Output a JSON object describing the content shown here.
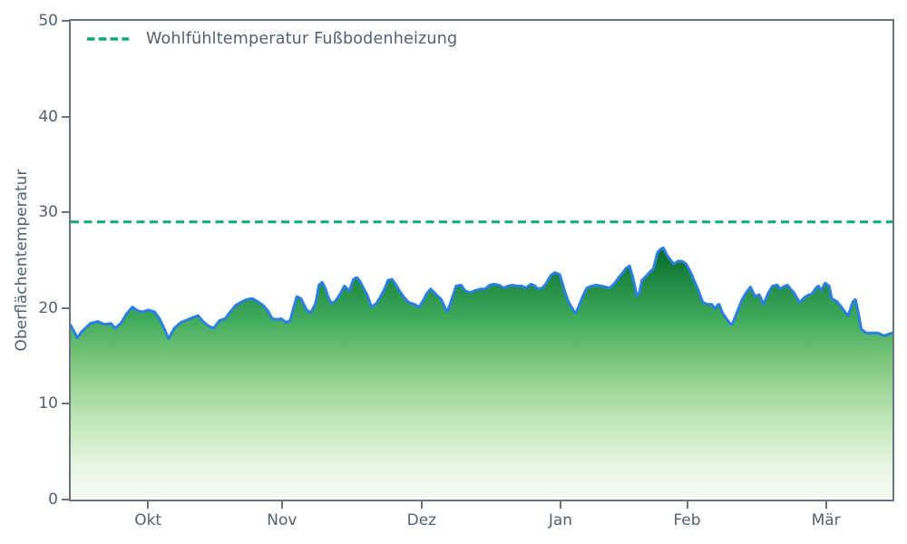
{
  "figure": {
    "background": "#ffffff",
    "text_color": "#546070",
    "spine_color": "#6b7380"
  },
  "legend": {
    "label": "Wohlfühltemperatur Fußbodenheizung",
    "line_color": "#0fa87a",
    "line_style": "dashed"
  },
  "chart_data": {
    "type": "area",
    "title": "",
    "xlabel": "",
    "ylabel": "Oberflächentemperatur",
    "ylim": [
      0,
      50
    ],
    "grid": false,
    "legend_position": "upper-left-inside",
    "y_ticks": [
      0,
      10,
      20,
      30,
      40,
      50
    ],
    "x_ticks": [
      {
        "label": "Okt",
        "pos": 0.094
      },
      {
        "label": "Nov",
        "pos": 0.257
      },
      {
        "label": "Dez",
        "pos": 0.427
      },
      {
        "label": "Jan",
        "pos": 0.596
      },
      {
        "label": "Feb",
        "pos": 0.75
      },
      {
        "label": "Mär",
        "pos": 0.919
      }
    ],
    "series": [
      {
        "name": "Oberflächentemperatur",
        "type": "area",
        "line_color": "#2a80e0",
        "line_width": 3,
        "fill_gradient_top_to_bottom": [
          "#06682a",
          "#238b45",
          "#41ab5d",
          "#74c476",
          "#a1d99b",
          "#c7e9c0",
          "#e5f5e0",
          "#f7fcf5"
        ],
        "points": [
          [
            0.0,
            18.2
          ],
          [
            0.003,
            17.7
          ],
          [
            0.008,
            16.9
          ],
          [
            0.013,
            17.5
          ],
          [
            0.024,
            18.4
          ],
          [
            0.033,
            18.6
          ],
          [
            0.041,
            18.3
          ],
          [
            0.049,
            18.4
          ],
          [
            0.054,
            17.9
          ],
          [
            0.061,
            18.4
          ],
          [
            0.068,
            19.4
          ],
          [
            0.075,
            20.1
          ],
          [
            0.082,
            19.7
          ],
          [
            0.088,
            19.6
          ],
          [
            0.094,
            19.8
          ],
          [
            0.102,
            19.6
          ],
          [
            0.108,
            18.9
          ],
          [
            0.114,
            17.8
          ],
          [
            0.119,
            16.8
          ],
          [
            0.126,
            17.9
          ],
          [
            0.134,
            18.5
          ],
          [
            0.14,
            18.7
          ],
          [
            0.148,
            19.0
          ],
          [
            0.155,
            19.2
          ],
          [
            0.161,
            18.6
          ],
          [
            0.168,
            18.1
          ],
          [
            0.174,
            17.9
          ],
          [
            0.181,
            18.7
          ],
          [
            0.188,
            18.9
          ],
          [
            0.194,
            19.6
          ],
          [
            0.201,
            20.3
          ],
          [
            0.207,
            20.6
          ],
          [
            0.214,
            20.9
          ],
          [
            0.221,
            21.0
          ],
          [
            0.227,
            20.7
          ],
          [
            0.234,
            20.3
          ],
          [
            0.24,
            19.7
          ],
          [
            0.245,
            18.9
          ],
          [
            0.252,
            18.8
          ],
          [
            0.256,
            18.9
          ],
          [
            0.262,
            18.5
          ],
          [
            0.267,
            18.7
          ],
          [
            0.275,
            21.2
          ],
          [
            0.28,
            21.0
          ],
          [
            0.287,
            19.8
          ],
          [
            0.292,
            19.5
          ],
          [
            0.298,
            20.5
          ],
          [
            0.302,
            22.4
          ],
          [
            0.306,
            22.7
          ],
          [
            0.31,
            22.0
          ],
          [
            0.313,
            21.2
          ],
          [
            0.317,
            20.5
          ],
          [
            0.322,
            20.7
          ],
          [
            0.328,
            21.5
          ],
          [
            0.333,
            22.3
          ],
          [
            0.339,
            21.8
          ],
          [
            0.344,
            23.0
          ],
          [
            0.348,
            23.2
          ],
          [
            0.352,
            22.8
          ],
          [
            0.355,
            22.3
          ],
          [
            0.361,
            21.3
          ],
          [
            0.366,
            20.1
          ],
          [
            0.372,
            20.5
          ],
          [
            0.375,
            20.9
          ],
          [
            0.382,
            22.0
          ],
          [
            0.386,
            22.9
          ],
          [
            0.391,
            23.0
          ],
          [
            0.396,
            22.4
          ],
          [
            0.4,
            21.8
          ],
          [
            0.405,
            21.2
          ],
          [
            0.411,
            20.6
          ],
          [
            0.418,
            20.4
          ],
          [
            0.424,
            20.1
          ],
          [
            0.429,
            20.8
          ],
          [
            0.433,
            21.5
          ],
          [
            0.438,
            22.0
          ],
          [
            0.446,
            21.3
          ],
          [
            0.451,
            20.9
          ],
          [
            0.455,
            20.1
          ],
          [
            0.458,
            19.6
          ],
          [
            0.462,
            20.5
          ],
          [
            0.469,
            22.3
          ],
          [
            0.475,
            22.4
          ],
          [
            0.48,
            21.8
          ],
          [
            0.486,
            21.6
          ],
          [
            0.491,
            21.8
          ],
          [
            0.499,
            22.0
          ],
          [
            0.504,
            22.0
          ],
          [
            0.51,
            22.4
          ],
          [
            0.515,
            22.5
          ],
          [
            0.521,
            22.4
          ],
          [
            0.527,
            22.1
          ],
          [
            0.532,
            22.3
          ],
          [
            0.538,
            22.4
          ],
          [
            0.543,
            22.3
          ],
          [
            0.549,
            22.3
          ],
          [
            0.554,
            22.1
          ],
          [
            0.56,
            22.5
          ],
          [
            0.565,
            22.3
          ],
          [
            0.568,
            22.0
          ],
          [
            0.574,
            22.1
          ],
          [
            0.578,
            22.5
          ],
          [
            0.584,
            23.4
          ],
          [
            0.589,
            23.7
          ],
          [
            0.595,
            23.5
          ],
          [
            0.601,
            21.8
          ],
          [
            0.606,
            20.6
          ],
          [
            0.613,
            19.6
          ],
          [
            0.615,
            19.5
          ],
          [
            0.623,
            21.2
          ],
          [
            0.628,
            22.1
          ],
          [
            0.634,
            22.3
          ],
          [
            0.64,
            22.4
          ],
          [
            0.646,
            22.3
          ],
          [
            0.651,
            22.2
          ],
          [
            0.656,
            22.1
          ],
          [
            0.661,
            22.5
          ],
          [
            0.667,
            23.2
          ],
          [
            0.672,
            23.7
          ],
          [
            0.675,
            24.1
          ],
          [
            0.68,
            24.4
          ],
          [
            0.684,
            23.2
          ],
          [
            0.689,
            21.3
          ],
          [
            0.692,
            21.6
          ],
          [
            0.695,
            22.9
          ],
          [
            0.701,
            23.4
          ],
          [
            0.705,
            23.8
          ],
          [
            0.709,
            24.1
          ],
          [
            0.714,
            25.8
          ],
          [
            0.717,
            26.1
          ],
          [
            0.721,
            26.3
          ],
          [
            0.725,
            25.6
          ],
          [
            0.731,
            24.9
          ],
          [
            0.734,
            24.6
          ],
          [
            0.739,
            24.9
          ],
          [
            0.744,
            24.9
          ],
          [
            0.749,
            24.6
          ],
          [
            0.754,
            23.8
          ],
          [
            0.758,
            23.0
          ],
          [
            0.764,
            21.8
          ],
          [
            0.769,
            20.6
          ],
          [
            0.775,
            20.4
          ],
          [
            0.78,
            20.4
          ],
          [
            0.784,
            19.9
          ],
          [
            0.787,
            20.3
          ],
          [
            0.789,
            20.4
          ],
          [
            0.793,
            19.5
          ],
          [
            0.797,
            19.0
          ],
          [
            0.802,
            18.4
          ],
          [
            0.805,
            18.3
          ],
          [
            0.811,
            19.6
          ],
          [
            0.817,
            20.9
          ],
          [
            0.822,
            21.6
          ],
          [
            0.827,
            22.2
          ],
          [
            0.833,
            21.2
          ],
          [
            0.838,
            21.4
          ],
          [
            0.843,
            20.4
          ],
          [
            0.849,
            21.6
          ],
          [
            0.854,
            22.3
          ],
          [
            0.86,
            22.4
          ],
          [
            0.863,
            22.0
          ],
          [
            0.869,
            22.3
          ],
          [
            0.872,
            22.4
          ],
          [
            0.88,
            21.6
          ],
          [
            0.887,
            20.6
          ],
          [
            0.894,
            21.2
          ],
          [
            0.902,
            21.5
          ],
          [
            0.907,
            22.1
          ],
          [
            0.91,
            22.3
          ],
          [
            0.913,
            21.8
          ],
          [
            0.918,
            22.6
          ],
          [
            0.923,
            22.3
          ],
          [
            0.926,
            21.0
          ],
          [
            0.932,
            20.7
          ],
          [
            0.937,
            20.2
          ],
          [
            0.943,
            19.5
          ],
          [
            0.946,
            19.2
          ],
          [
            0.952,
            20.7
          ],
          [
            0.955,
            20.9
          ],
          [
            0.959,
            19.2
          ],
          [
            0.962,
            17.8
          ],
          [
            0.968,
            17.4
          ],
          [
            0.976,
            17.4
          ],
          [
            0.982,
            17.4
          ],
          [
            0.99,
            17.1
          ],
          [
            0.996,
            17.3
          ],
          [
            1.0,
            17.4
          ]
        ]
      },
      {
        "name": "Wohlfühltemperatur Fußbodenheizung",
        "type": "hline",
        "value": 29,
        "color": "#0fa87a",
        "line_width": 3,
        "dash": [
          9,
          5.5
        ]
      }
    ]
  }
}
